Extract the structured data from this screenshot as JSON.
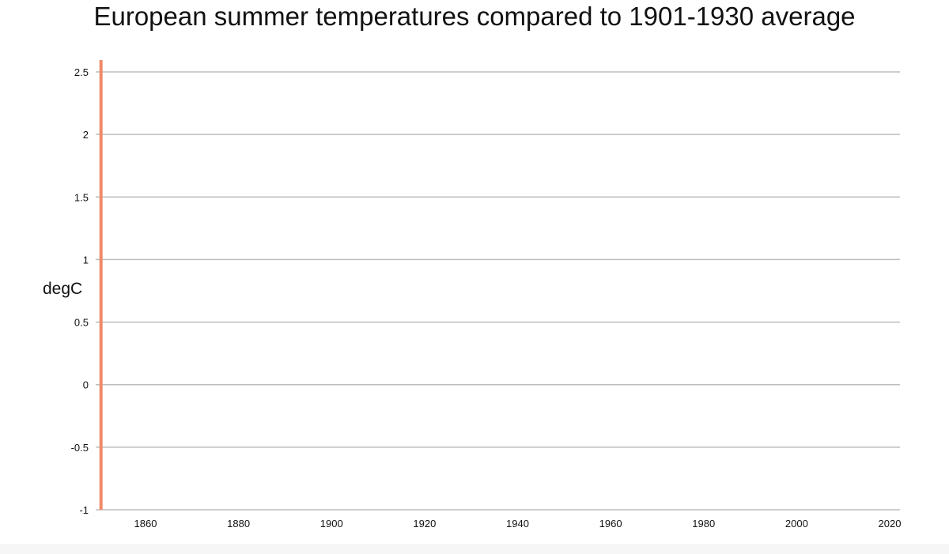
{
  "chart_data": {
    "type": "bar",
    "title": "European summer temperatures compared to 1901-1930 average",
    "xlabel": "",
    "ylabel": "degC",
    "xlim": [
      1850,
      2022
    ],
    "ylim": [
      -1,
      2.6
    ],
    "x_ticks": [
      "1860",
      "1880",
      "1900",
      "1920",
      "1940",
      "1960",
      "1980",
      "2000",
      "2020"
    ],
    "y_ticks": [
      "2.5",
      "2",
      "1.5",
      "1",
      "0.5",
      "0",
      "-0.5",
      "-1"
    ],
    "grid": true,
    "legend": "none",
    "bar_color": "#f08a68",
    "series": [
      {
        "x": [
          1850
        ],
        "values": [
          2.6
        ]
      }
    ]
  }
}
